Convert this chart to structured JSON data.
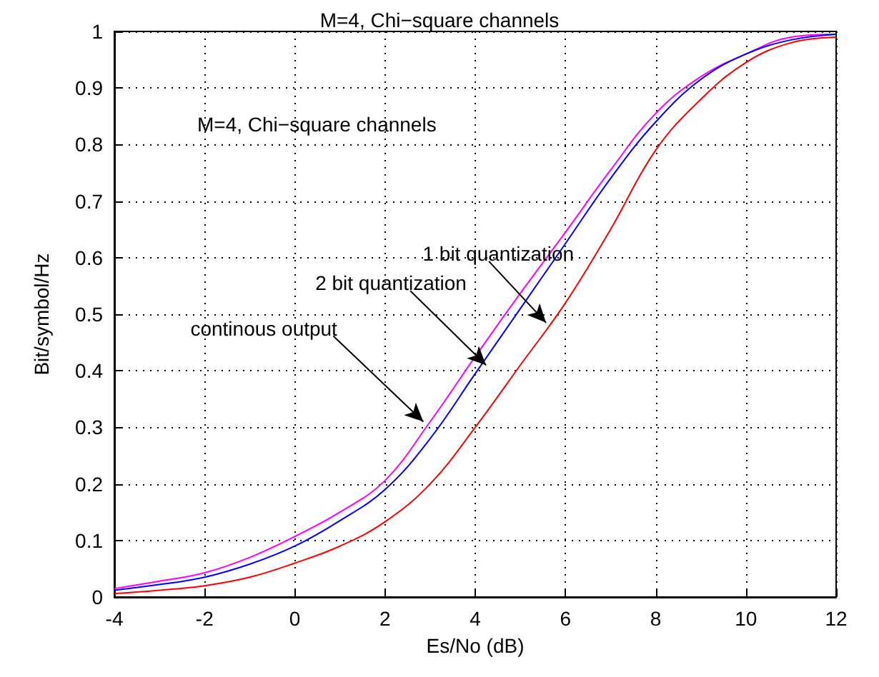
{
  "chart_data": {
    "type": "line",
    "title": "M=4, Chi−square channels",
    "xlabel": "Es/No (dB)",
    "ylabel": "Bit/symbol/Hz",
    "x": [
      -4,
      -3,
      -2,
      -1,
      0,
      1,
      2,
      3,
      4,
      5,
      6,
      7,
      8,
      9,
      10,
      11,
      12
    ],
    "series": [
      {
        "color": "#ff00ff",
        "values": [
          0.015,
          0.028,
          0.043,
          0.07,
          0.107,
          0.15,
          0.206,
          0.31,
          0.425,
          0.537,
          0.645,
          0.755,
          0.855,
          0.92,
          0.96,
          0.99,
          0.995
        ]
      },
      {
        "color": "#0000ff",
        "values": [
          0.012,
          0.022,
          0.035,
          0.058,
          0.09,
          0.135,
          0.19,
          0.28,
          0.395,
          0.51,
          0.625,
          0.74,
          0.84,
          0.915,
          0.96,
          0.985,
          0.995
        ]
      },
      {
        "color": "#ff0000",
        "values": [
          0.006,
          0.012,
          0.02,
          0.035,
          0.06,
          0.09,
          0.133,
          0.2,
          0.3,
          0.41,
          0.52,
          0.65,
          0.79,
          0.88,
          0.945,
          0.98,
          0.99
        ]
      }
    ],
    "annotations": [
      "M=4, Chi−square channels",
      {
        "text": "1 bit quantization",
        "x": 5.57,
        "y": 0.485
      },
      {
        "text": "2 bit quantization",
        "x": 4.24,
        "y": 0.41
      },
      {
        "text": "continous output",
        "x": 2.85,
        "y": 0.31
      }
    ],
    "xlim": [
      -4,
      12
    ],
    "xticks": [
      -4,
      -2,
      0,
      2,
      4,
      6,
      8,
      10,
      12
    ],
    "ylim": [
      0,
      1
    ],
    "yticks": [
      0,
      0.1,
      0.2,
      0.3,
      0.4,
      0.5,
      0.6,
      0.7,
      0.8,
      0.9,
      1
    ],
    "grid": true,
    "marker": "none",
    "line_style": "solid"
  }
}
